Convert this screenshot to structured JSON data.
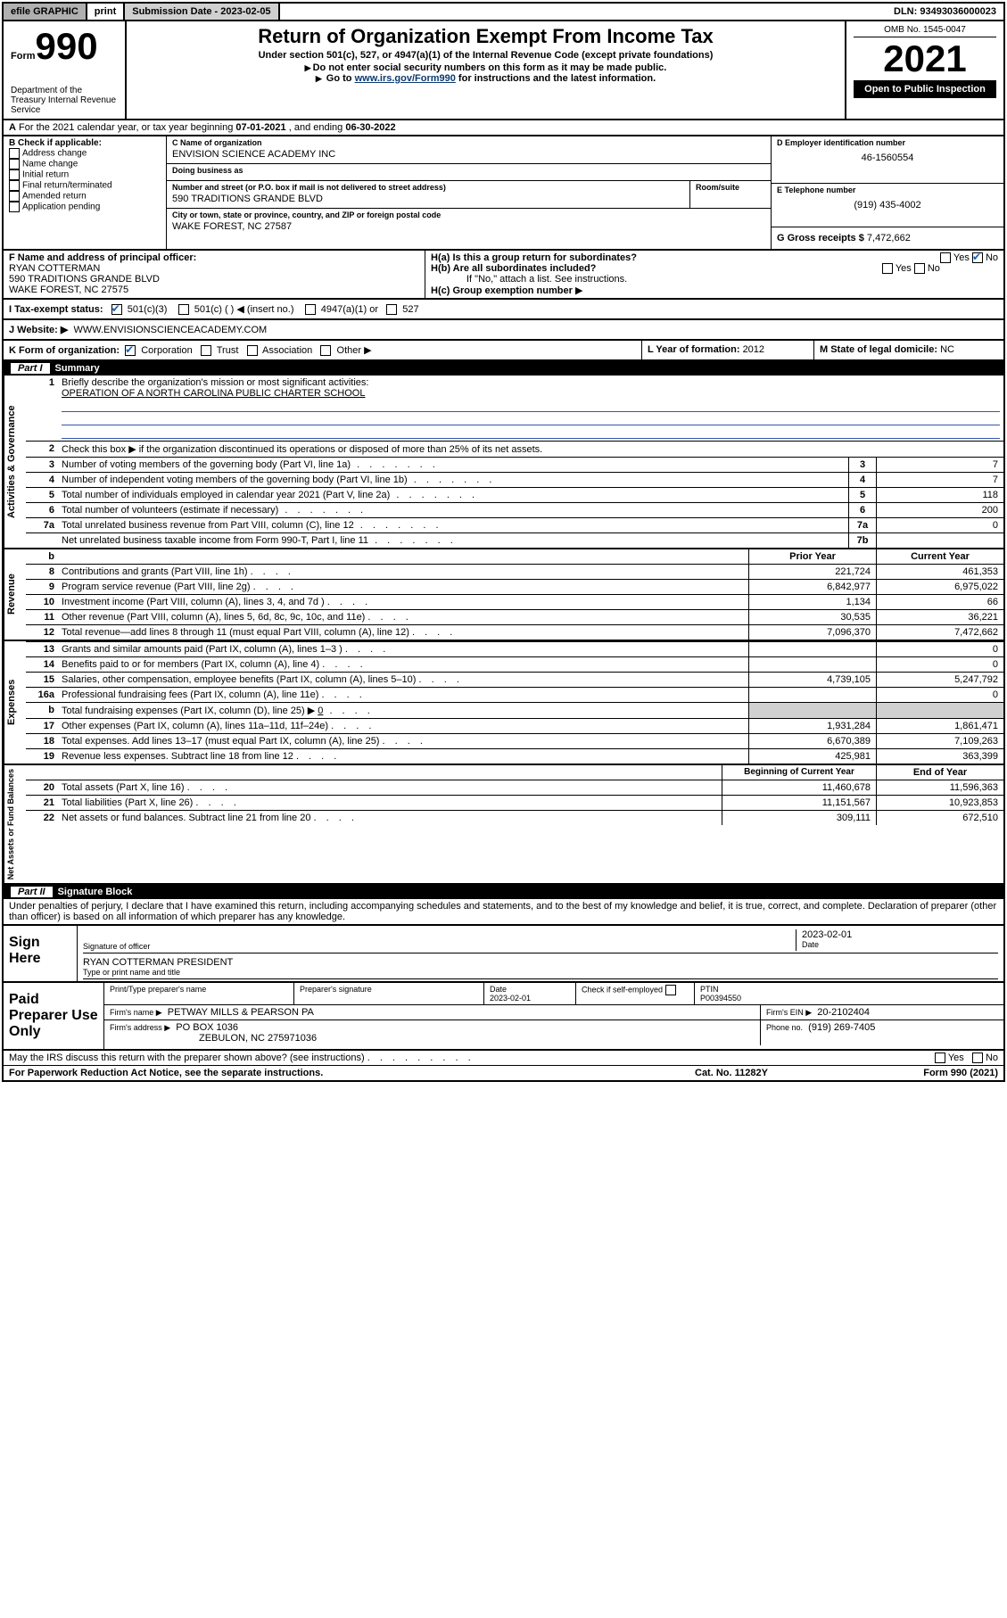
{
  "topbar": {
    "efile": "efile GRAPHIC",
    "print": "print",
    "submission_label": "Submission Date - ",
    "submission_date": "2023-02-05",
    "dln": "DLN: 93493036000023"
  },
  "header": {
    "form": "Form",
    "formnum": "990",
    "dept": "Department of the Treasury\nInternal Revenue Service",
    "title": "Return of Organization Exempt From Income Tax",
    "subtitle": "Under section 501(c), 527, or 4947(a)(1) of the Internal Revenue Code (except private foundations)",
    "instr1": "Do not enter social security numbers on this form as it may be made public.",
    "instr2_pre": "Go to ",
    "instr2_link": "www.irs.gov/Form990",
    "instr2_post": " for instructions and the latest information.",
    "omb": "OMB No. 1545-0047",
    "year": "2021",
    "openpub": "Open to Public Inspection"
  },
  "sectionA": {
    "prefix": "A",
    "text": " For the 2021 calendar year, or tax year beginning ",
    "begin": "07-01-2021",
    "mid": " , and ending ",
    "end": "06-30-2022"
  },
  "sectionB": {
    "label": "B Check if applicable:",
    "items": [
      "Address change",
      "Name change",
      "Initial return",
      "Final return/terminated",
      "Amended return",
      "Application pending"
    ]
  },
  "sectionC": {
    "name_label": "C Name of organization",
    "name": "ENVISION SCIENCE ACADEMY INC",
    "dba_label": "Doing business as",
    "dba": "",
    "addr_label": "Number and street (or P.O. box if mail is not delivered to street address)",
    "room_label": "Room/suite",
    "addr": "590 TRADITIONS GRANDE BLVD",
    "city_label": "City or town, state or province, country, and ZIP or foreign postal code",
    "city": "WAKE FOREST, NC  27587"
  },
  "sectionD": {
    "label": "D Employer identification number",
    "value": "46-1560554"
  },
  "sectionE": {
    "label": "E Telephone number",
    "value": "(919) 435-4002"
  },
  "sectionG": {
    "label": "G Gross receipts $ ",
    "value": "7,472,662"
  },
  "sectionF": {
    "label": "F Name and address of principal officer:",
    "name": "RYAN COTTERMAN",
    "addr1": "590 TRADITIONS GRANDE BLVD",
    "addr2": "WAKE FOREST, NC  27575"
  },
  "sectionH": {
    "ha": "H(a)  Is this a group return for subordinates?",
    "ha_yes": "Yes",
    "ha_no": "No",
    "hb": "H(b)  Are all subordinates included?",
    "hb_note": "If \"No,\" attach a list. See instructions.",
    "hc": "H(c)  Group exemption number"
  },
  "sectionI": {
    "label": "I    Tax-exempt status:",
    "opts": [
      "501(c)(3)",
      "501(c) (  ) ◀ (insert no.)",
      "4947(a)(1) or",
      "527"
    ]
  },
  "sectionJ": {
    "label": "J    Website: ▶",
    "value": "WWW.ENVISIONSCIENCEACADEMY.COM"
  },
  "sectionK": {
    "label": "K Form of organization:",
    "opts": [
      "Corporation",
      "Trust",
      "Association",
      "Other ▶"
    ]
  },
  "sectionL": {
    "label": "L Year of formation: ",
    "value": "2012"
  },
  "sectionM": {
    "label": "M State of legal domicile: ",
    "value": "NC"
  },
  "partI": {
    "title": "Part I",
    "name": "Summary",
    "q1": "Briefly describe the organization's mission or most significant activities:",
    "q1ans": "OPERATION OF A NORTH CAROLINA PUBLIC CHARTER SCHOOL",
    "q2": "Check this box ▶      if the organization discontinued its operations or disposed of more than 25% of its net assets.",
    "lines": [
      {
        "n": "3",
        "t": "Number of voting members of the governing body (Part VI, line 1a)",
        "k": "3",
        "v": "7"
      },
      {
        "n": "4",
        "t": "Number of independent voting members of the governing body (Part VI, line 1b)",
        "k": "4",
        "v": "7"
      },
      {
        "n": "5",
        "t": "Total number of individuals employed in calendar year 2021 (Part V, line 2a)",
        "k": "5",
        "v": "118"
      },
      {
        "n": "6",
        "t": "Total number of volunteers (estimate if necessary)",
        "k": "6",
        "v": "200"
      },
      {
        "n": "7a",
        "t": "Total unrelated business revenue from Part VIII, column (C), line 12",
        "k": "7a",
        "v": "0"
      },
      {
        "n": "",
        "t": "Net unrelated business taxable income from Form 990-T, Part I, line 11",
        "k": "7b",
        "v": ""
      }
    ],
    "yearhdr": {
      "prior": "Prior Year",
      "current": "Current Year"
    },
    "revenue_label": "Revenue",
    "revenue": [
      {
        "n": "8",
        "t": "Contributions and grants (Part VIII, line 1h)",
        "p": "221,724",
        "c": "461,353"
      },
      {
        "n": "9",
        "t": "Program service revenue (Part VIII, line 2g)",
        "p": "6,842,977",
        "c": "6,975,022"
      },
      {
        "n": "10",
        "t": "Investment income (Part VIII, column (A), lines 3, 4, and 7d )",
        "p": "1,134",
        "c": "66"
      },
      {
        "n": "11",
        "t": "Other revenue (Part VIII, column (A), lines 5, 6d, 8c, 9c, 10c, and 11e)",
        "p": "30,535",
        "c": "36,221"
      },
      {
        "n": "12",
        "t": "Total revenue—add lines 8 through 11 (must equal Part VIII, column (A), line 12)",
        "p": "7,096,370",
        "c": "7,472,662"
      }
    ],
    "expenses_label": "Expenses",
    "expenses": [
      {
        "n": "13",
        "t": "Grants and similar amounts paid (Part IX, column (A), lines 1–3 )",
        "p": "",
        "c": "0"
      },
      {
        "n": "14",
        "t": "Benefits paid to or for members (Part IX, column (A), line 4)",
        "p": "",
        "c": "0"
      },
      {
        "n": "15",
        "t": "Salaries, other compensation, employee benefits (Part IX, column (A), lines 5–10)",
        "p": "4,739,105",
        "c": "5,247,792"
      },
      {
        "n": "16a",
        "t": "Professional fundraising fees (Part IX, column (A), line 11e)",
        "p": "",
        "c": "0"
      },
      {
        "n": "b",
        "t": "Total fundraising expenses (Part IX, column (D), line 25) ▶",
        "p": "shade",
        "c": "shade",
        "inline": "0"
      },
      {
        "n": "17",
        "t": "Other expenses (Part IX, column (A), lines 11a–11d, 11f–24e)",
        "p": "1,931,284",
        "c": "1,861,471"
      },
      {
        "n": "18",
        "t": "Total expenses. Add lines 13–17 (must equal Part IX, column (A), line 25)",
        "p": "6,670,389",
        "c": "7,109,263"
      },
      {
        "n": "19",
        "t": "Revenue less expenses. Subtract line 18 from line 12",
        "p": "425,981",
        "c": "363,399"
      }
    ],
    "netassets_label": "Net Assets or Fund Balances",
    "nethdr": {
      "begin": "Beginning of Current Year",
      "end": "End of Year"
    },
    "netassets": [
      {
        "n": "20",
        "t": "Total assets (Part X, line 16)",
        "p": "11,460,678",
        "c": "11,596,363"
      },
      {
        "n": "21",
        "t": "Total liabilities (Part X, line 26)",
        "p": "11,151,567",
        "c": "10,923,853"
      },
      {
        "n": "22",
        "t": "Net assets or fund balances. Subtract line 21 from line 20",
        "p": "309,111",
        "c": "672,510"
      }
    ],
    "gov_label": "Activities & Governance"
  },
  "partII": {
    "title": "Part II",
    "name": "Signature Block",
    "declare": "Under penalties of perjury, I declare that I have examined this return, including accompanying schedules and statements, and to the best of my knowledge and belief, it is true, correct, and complete. Declaration of preparer (other than officer) is based on all information of which preparer has any knowledge."
  },
  "signhere": {
    "label": "Sign Here",
    "sig_of_officer": "Signature of officer",
    "date": "Date",
    "dateval": "2023-02-01",
    "name": "RYAN COTTERMAN  PRESIDENT",
    "typeprint": "Type or print name and title"
  },
  "paid": {
    "label": "Paid Preparer Use Only",
    "c1": "Print/Type preparer's name",
    "c2": "Preparer's signature",
    "c3": "Date",
    "c4": "Check        if self-employed",
    "c5": "PTIN",
    "dateval": "2023-02-01",
    "ptin": "P00394550",
    "firm_name_l": "Firm's name    ▶",
    "firm_name": "PETWAY MILLS & PEARSON PA",
    "firm_ein_l": "Firm's EIN ▶",
    "firm_ein": "20-2102404",
    "firm_addr_l": "Firm's address ▶",
    "firm_addr1": "PO BOX 1036",
    "firm_addr2": "ZEBULON, NC  275971036",
    "phone_l": "Phone no.",
    "phone": "(919) 269-7405"
  },
  "discuss": {
    "text": "May the IRS discuss this return with the preparer shown above? (see instructions)",
    "yes": "Yes",
    "no": "No"
  },
  "footer": {
    "left": "For Paperwork Reduction Act Notice, see the separate instructions.",
    "mid": "Cat. No. 11282Y",
    "right_l": "Form ",
    "right_b": "990",
    "right_r": " (2021)"
  },
  "colors": {
    "link": "#0b3a6f",
    "ruleline": "#3355aa",
    "shade": "#d0d0d0",
    "check": "#1560bd"
  }
}
